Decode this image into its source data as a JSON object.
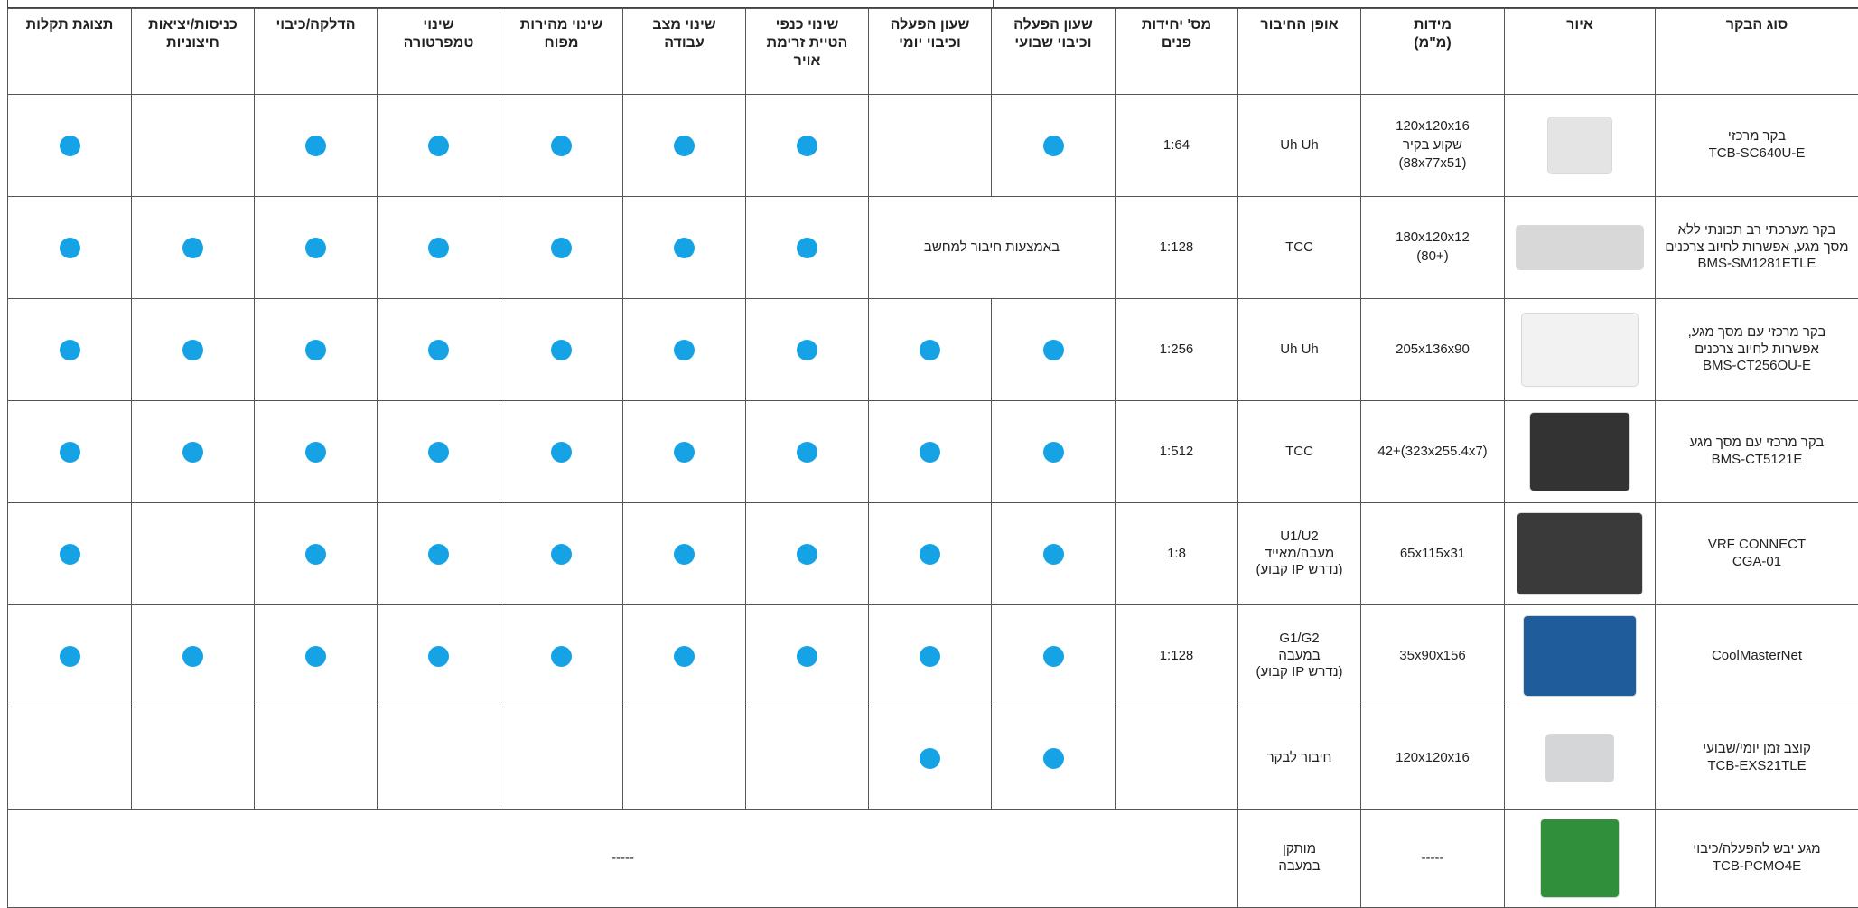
{
  "table": {
    "headers": [
      [
        "סוג הבקר"
      ],
      [
        "איור"
      ],
      [
        "מידות",
        "(מ\"מ)"
      ],
      [
        "אופן החיבור"
      ],
      [
        "מס' יחידות",
        "פנים"
      ],
      [
        "שעון הפעלה",
        "וכיבוי שבועי"
      ],
      [
        "שעון הפעלה",
        "וכיבוי יומי"
      ],
      [
        "שינוי כנפי",
        "הטיית זרימת",
        "אויר"
      ],
      [
        "שינוי מצב",
        "עבודה"
      ],
      [
        "שינוי מהירות",
        "מפוח"
      ],
      [
        "שינוי",
        "טמפרטורה"
      ],
      [
        "הדלקה/כיבוי"
      ],
      [
        "כניסות/יציאות",
        "חיצוניות"
      ],
      [
        "תצוגת תקלות"
      ]
    ],
    "rows": [
      {
        "name": [
          "בקר מרכזי",
          "TCB-SC640U-E"
        ],
        "dims": [
          "120x120x16",
          "שקוע בקיר",
          "(88x77x51)"
        ],
        "connection": [
          "Uh Uh"
        ],
        "cells": [
          "1:64",
          true,
          false,
          true,
          true,
          true,
          true,
          true,
          false,
          true
        ]
      },
      {
        "name": [
          "בקר מערכתי רב תכונתי ללא",
          "מסך מגע, אפשרות לחיוב צרכנים",
          "BMS-SM1281ETLE"
        ],
        "dims": [
          "180x120x12",
          "(+80)"
        ],
        "connection": [
          "TCC"
        ],
        "cells": [
          "1:128",
          "באמצעות חיבור למחשב",
          null,
          true,
          true,
          true,
          true,
          true,
          true,
          true
        ]
      },
      {
        "name": [
          "בקר מרכזי עם מסך מגע,",
          "אפשרות לחיוב צרכנים",
          "BMS-CT256OU-E"
        ],
        "dims": [
          "205x136x90"
        ],
        "connection": [
          "Uh Uh"
        ],
        "cells": [
          "1:256",
          true,
          true,
          true,
          true,
          true,
          true,
          true,
          true,
          true
        ]
      },
      {
        "name": [
          "בקר מרכזי עם מסך מגע",
          "BMS-CT5121E"
        ],
        "dims": [
          "(323x255.4x7)+42"
        ],
        "connection": [
          "TCC"
        ],
        "cells": [
          "1:512",
          true,
          true,
          true,
          true,
          true,
          true,
          true,
          true,
          true
        ]
      },
      {
        "name": [
          "VRF CONNECT",
          "CGA-01"
        ],
        "dims": [
          "65x115x31"
        ],
        "connection": [
          "U1/U2",
          "מעבה/מאייד",
          "(נדרש IP קבוע)"
        ],
        "cells": [
          "1:8",
          true,
          true,
          true,
          true,
          true,
          true,
          true,
          false,
          true
        ]
      },
      {
        "name": [
          "CoolMasterNet"
        ],
        "dims": [
          "35x90x156"
        ],
        "connection": [
          "G1/G2",
          "במעבה",
          "(נדרש IP קבוע)"
        ],
        "cells": [
          "1:128",
          true,
          true,
          true,
          true,
          true,
          true,
          true,
          true,
          true
        ]
      },
      {
        "name": [
          "קוצב זמן יומי/שבועי",
          "TCB-EXS21TLE"
        ],
        "dims": [
          "120x120x16"
        ],
        "connection": [
          "חיבור לבקר"
        ],
        "cells": [
          false,
          true,
          true,
          false,
          false,
          false,
          false,
          false,
          false,
          false
        ]
      },
      {
        "name": [
          "מגע יבש להפעלה/כיבוי",
          "TCB-PCMO4E"
        ],
        "dims": [
          "-----"
        ],
        "connection": [
          "מותקן",
          "במעבה"
        ],
        "cells": [
          "-----",
          null,
          null,
          null,
          null,
          null,
          null,
          null,
          null,
          null
        ]
      }
    ]
  }
}
